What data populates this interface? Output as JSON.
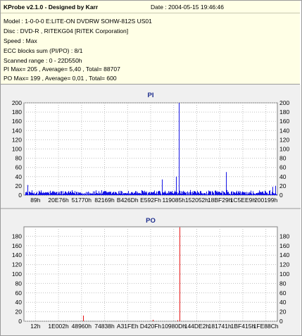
{
  "header": {
    "title": "KProbe v2.1.0 - Designed by Karr",
    "date": "Date : 2004-05-15 19:46:46"
  },
  "info_lines": [
    "Model : 1-0-0-0 E:LITE-ON DVDRW SOHW-812S  US01",
    "Disc : DVD-R , RITEKG04 [RiTEK Corporation]",
    "Speed : Max",
    "ECC blocks sum (PI/PO) : 8/1",
    "Scanned range : 0 - 22D550h",
    "PI Max= 205 , Average= 5,40 , Total= 88707",
    "PO Max= 199 , Average= 0,01 , Total= 600"
  ],
  "colors": {
    "pi": "#1414e6",
    "po": "#e61414",
    "grid": "#c0c0c0",
    "plot_bg": "#ffffff",
    "info_bg": "#ffffe6",
    "chart_bg": "#f0f0f0",
    "title": "#1c2c8c"
  },
  "chart_data": [
    {
      "type": "area",
      "title": "PI",
      "categories": [
        "89h",
        "20E76h",
        "51770h",
        "82169h",
        "B426Dh",
        "E592Fh",
        "119085h",
        "152052h",
        "18BF29h",
        "1C5EE9h",
        "200199h"
      ],
      "ylim": [
        0,
        200
      ],
      "yticks": [
        0,
        20,
        40,
        60,
        80,
        100,
        120,
        140,
        160,
        180,
        200
      ],
      "xlim": [
        0,
        2282832
      ],
      "grid": true,
      "baseline": {
        "mean": 5.4,
        "band_low": 1,
        "band_high": 12
      },
      "spikes": [
        {
          "x": 1240000,
          "y": 34
        },
        {
          "x": 1395000,
          "y": 205
        },
        {
          "x": 1370000,
          "y": 40
        },
        {
          "x": 1820000,
          "y": 50
        },
        {
          "x": 2240000,
          "y": 18
        },
        {
          "x": 30000,
          "y": 22
        },
        {
          "x": 2262000,
          "y": 20
        }
      ]
    },
    {
      "type": "bar",
      "title": "PO",
      "categories": [
        "12h",
        "1E002h",
        "48960h",
        "74838h",
        "A31FEh",
        "D420Fh",
        "10980Dh",
        "144DE2h",
        "181741h",
        "1BF415h",
        "1FE88Ch"
      ],
      "ylim": [
        0,
        200
      ],
      "yticks": [
        0,
        20,
        40,
        60,
        80,
        100,
        120,
        140,
        160,
        180
      ],
      "xlim": [
        0,
        2282832
      ],
      "grid": true,
      "spikes": [
        {
          "x": 530000,
          "y": 12
        },
        {
          "x": 1400000,
          "y": 199
        },
        {
          "x": 1160000,
          "y": 3
        },
        {
          "x": 1380000,
          "y": 2
        }
      ]
    }
  ]
}
